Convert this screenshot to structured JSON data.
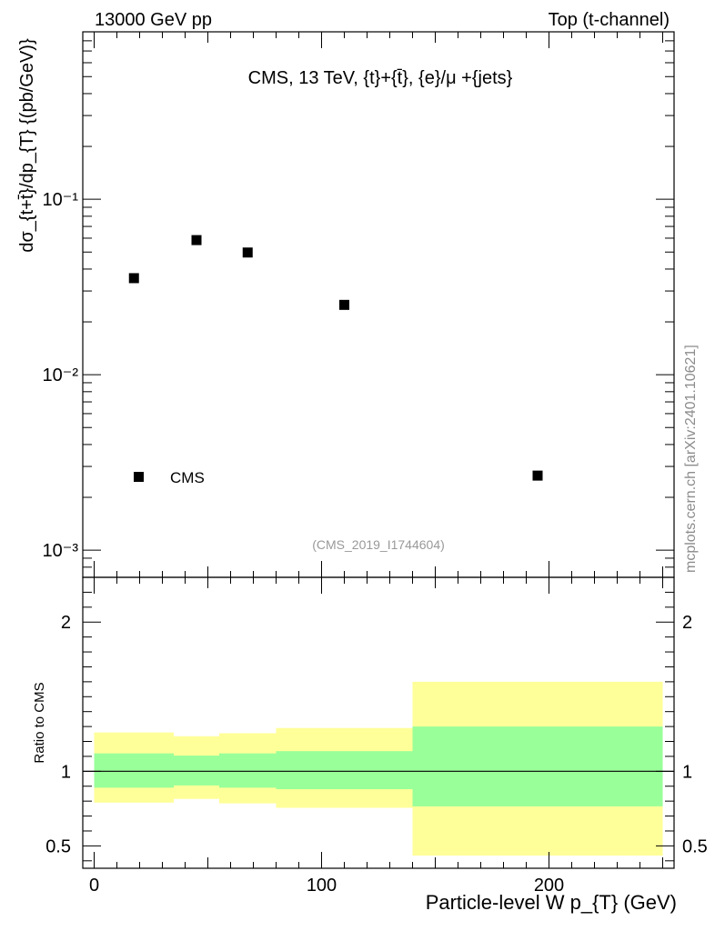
{
  "header": {
    "left": "13000 GeV pp",
    "right": "Top (t-channel)"
  },
  "side_label": "mcplots.cern.ch [arXiv:2401.10621]",
  "chart_data": [
    {
      "type": "scatter",
      "title": "CMS, 13 TeV, {t}+{t̄}, {e}/μ +{jets}",
      "ylabel": "dσ_{t+t̄}/dp_{T} {(pb/GeV)}",
      "yscale": "log",
      "ylim": [
        0.0007,
        0.9
      ],
      "xlim": [
        -5,
        255
      ],
      "y_ticks": [
        {
          "value": 0.1,
          "label": "10⁻¹"
        },
        {
          "value": 0.01,
          "label": "10⁻²"
        },
        {
          "value": 0.001,
          "label": "10⁻³"
        }
      ],
      "legend": {
        "placement": "bottom-left",
        "entries": [
          "CMS"
        ]
      },
      "watermark": "(CMS_2019_I1744604)",
      "series": [
        {
          "name": "CMS",
          "x": [
            17.5,
            45,
            67.5,
            110,
            195
          ],
          "y": [
            0.0355,
            0.0585,
            0.0497,
            0.025,
            0.00266
          ]
        }
      ]
    },
    {
      "type": "area",
      "ylabel": "Ratio to CMS",
      "xlabel": "Particle-level W p_{T} (GeV)",
      "xlim": [
        -5,
        255
      ],
      "ylim": [
        0.35,
        2.3
      ],
      "x_ticks": [
        0,
        100,
        200
      ],
      "y_ticks": [
        0.5,
        1,
        2
      ],
      "reference_line": 1,
      "bins": [
        {
          "lo": 0,
          "hi": 35,
          "inner": [
            0.89,
            1.12
          ],
          "outer": [
            0.79,
            1.26
          ]
        },
        {
          "lo": 35,
          "hi": 55,
          "inner": [
            0.905,
            1.105
          ],
          "outer": [
            0.815,
            1.235
          ]
        },
        {
          "lo": 55,
          "hi": 80,
          "inner": [
            0.89,
            1.12
          ],
          "outer": [
            0.785,
            1.255
          ]
        },
        {
          "lo": 80,
          "hi": 140,
          "inner": [
            0.88,
            1.135
          ],
          "outer": [
            0.755,
            1.29
          ]
        },
        {
          "lo": 140,
          "hi": 250,
          "inner": [
            0.765,
            1.3
          ],
          "outer": [
            0.435,
            1.6
          ]
        }
      ],
      "colors": {
        "inner": "#99ff99",
        "outer": "#ffff99"
      }
    }
  ]
}
